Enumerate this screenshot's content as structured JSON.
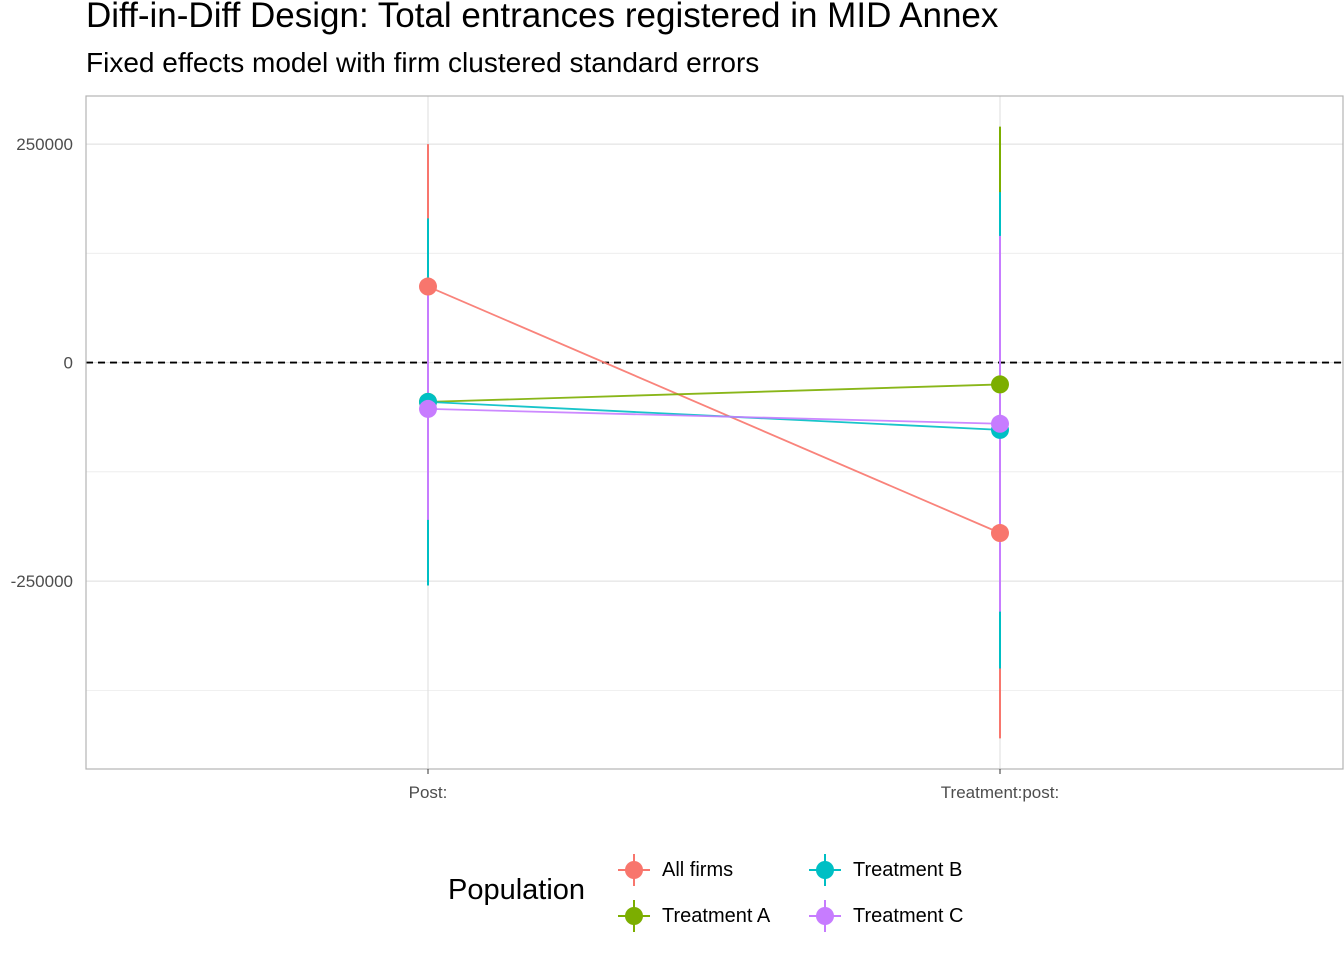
{
  "chart_data": {
    "type": "scatter",
    "title": "Diff-in-Diff Design: Total entrances registered in MID Annex",
    "subtitle": "Fixed effects model with firm clustered standard errors",
    "xlabel": "",
    "ylabel": "",
    "categories": [
      "Post:",
      "Treatment:post:"
    ],
    "ylim": [
      -465000,
      305000
    ],
    "yticks": [
      250000,
      0,
      -250000
    ],
    "ytick_labels": [
      "250000",
      "0",
      "-250000"
    ],
    "reference_line": {
      "y": 0,
      "style": "dashed"
    },
    "grid": true,
    "legend": {
      "title": "Population",
      "position": "bottom"
    },
    "series": [
      {
        "name": "All firms",
        "color": "#F8766D",
        "estimate": [
          87000,
          -195000
        ],
        "lower": [
          -65000,
          -430000
        ],
        "upper": [
          250000,
          40000
        ]
      },
      {
        "name": "Treatment A",
        "color": "#7CAE00",
        "estimate": [
          -45000,
          -25000
        ],
        "lower": [
          -80000,
          -60000
        ],
        "upper": [
          -10000,
          270000
        ]
      },
      {
        "name": "Treatment B",
        "color": "#00BFC4",
        "estimate": [
          -45000,
          -77000
        ],
        "lower": [
          -255000,
          -350000
        ],
        "upper": [
          165000,
          195000
        ]
      },
      {
        "name": "Treatment C",
        "color": "#C77CFF",
        "estimate": [
          -53000,
          -70000
        ],
        "lower": [
          -180000,
          -285000
        ],
        "upper": [
          92000,
          145000
        ]
      }
    ]
  }
}
